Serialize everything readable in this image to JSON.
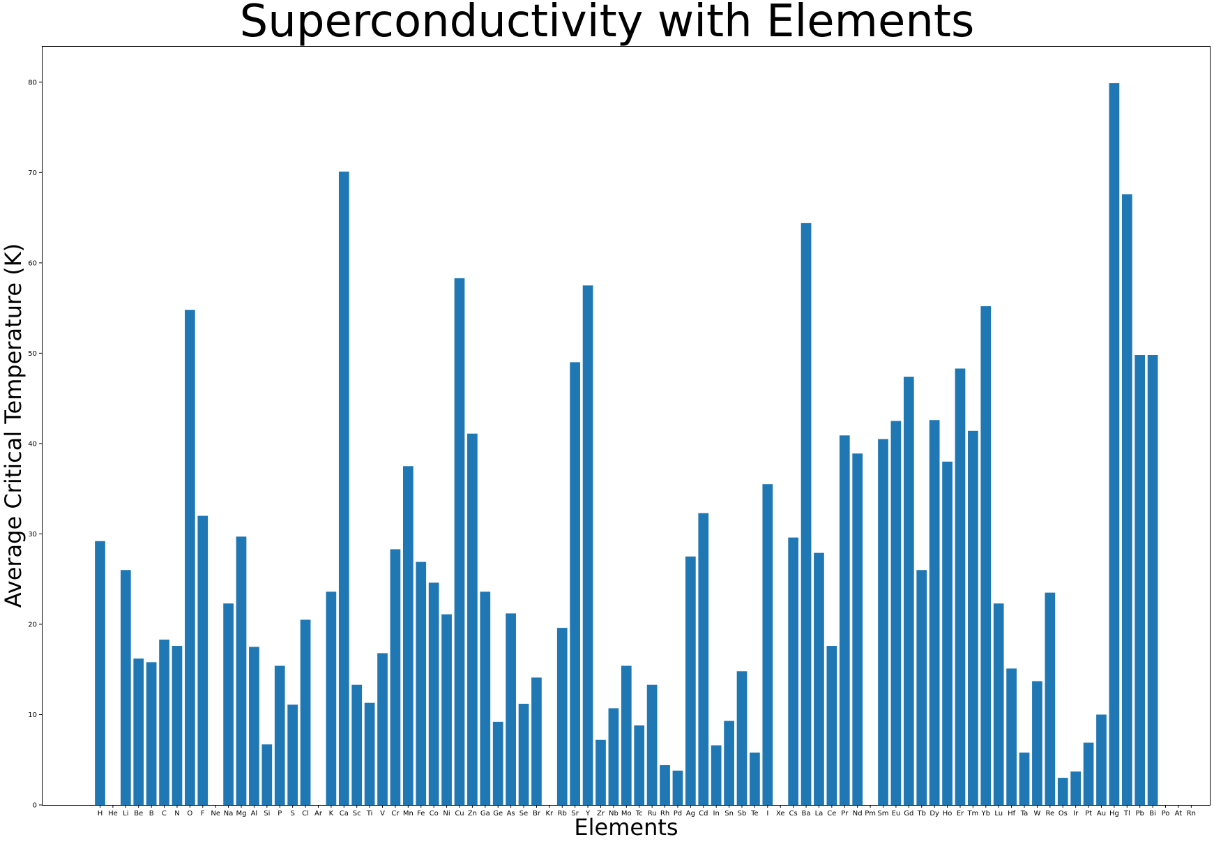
{
  "chart_data": {
    "type": "bar",
    "title": "Superconductivity with Elements",
    "xlabel": "Elements",
    "ylabel": "Average Critical Temperature (K)",
    "ylim": [
      0,
      84
    ],
    "yticks": [
      0,
      10,
      20,
      30,
      40,
      50,
      60,
      70,
      80
    ],
    "grid": false,
    "bar_color": "#1f77b4",
    "categories": [
      "H",
      "He",
      "Li",
      "Be",
      "B",
      "C",
      "N",
      "O",
      "F",
      "Ne",
      "Na",
      "Mg",
      "Al",
      "Si",
      "P",
      "S",
      "Cl",
      "Ar",
      "K",
      "Ca",
      "Sc",
      "Ti",
      "V",
      "Cr",
      "Mn",
      "Fe",
      "Co",
      "Ni",
      "Cu",
      "Zn",
      "Ga",
      "Ge",
      "As",
      "Se",
      "Br",
      "Kr",
      "Rb",
      "Sr",
      "Y",
      "Zr",
      "Nb",
      "Mo",
      "Tc",
      "Ru",
      "Rh",
      "Pd",
      "Ag",
      "Cd",
      "In",
      "Sn",
      "Sb",
      "Te",
      "I",
      "Xe",
      "Cs",
      "Ba",
      "La",
      "Ce",
      "Pr",
      "Nd",
      "Pm",
      "Sm",
      "Eu",
      "Gd",
      "Tb",
      "Dy",
      "Ho",
      "Er",
      "Tm",
      "Yb",
      "Lu",
      "Hf",
      "Ta",
      "W",
      "Re",
      "Os",
      "Ir",
      "Pt",
      "Au",
      "Hg",
      "Tl",
      "Pb",
      "Bi",
      "Po",
      "At",
      "Rn"
    ],
    "values": [
      29.2,
      0,
      26.0,
      16.2,
      15.8,
      18.3,
      17.6,
      54.8,
      32.0,
      0,
      22.3,
      29.7,
      17.5,
      6.7,
      15.4,
      11.1,
      20.5,
      0,
      23.6,
      70.1,
      13.3,
      11.3,
      16.8,
      28.3,
      37.5,
      26.9,
      24.6,
      21.1,
      58.3,
      41.1,
      23.6,
      9.2,
      21.2,
      11.2,
      14.1,
      0,
      19.6,
      49.0,
      57.5,
      7.2,
      10.7,
      15.4,
      8.8,
      13.3,
      4.4,
      3.8,
      27.5,
      32.3,
      6.6,
      9.3,
      14.8,
      5.8,
      35.5,
      0,
      29.6,
      64.4,
      27.9,
      17.6,
      40.9,
      38.9,
      0,
      40.5,
      42.5,
      47.4,
      26.0,
      42.6,
      38.0,
      48.3,
      41.4,
      55.2,
      22.3,
      15.1,
      5.8,
      13.7,
      23.5,
      3.0,
      3.7,
      6.9,
      10.0,
      79.9,
      67.6,
      49.8,
      49.8,
      0,
      0,
      0
    ]
  }
}
